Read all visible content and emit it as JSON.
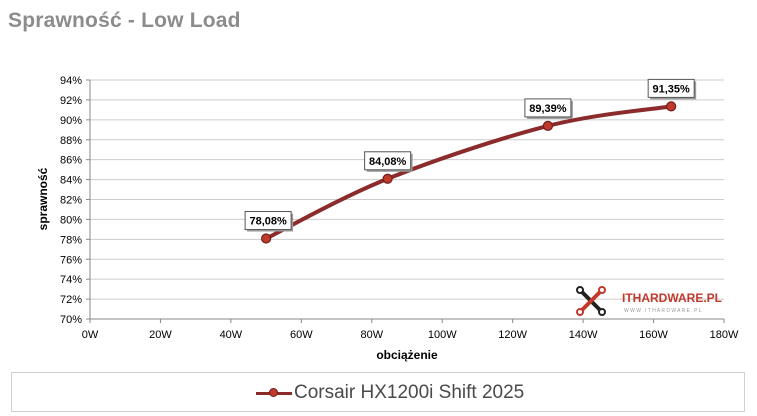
{
  "title": "Sprawność - Low Load",
  "watermark": {
    "brand": "ITHARDWARE.PL",
    "sub": "W W W . I T H A R D W A R E . P L",
    "icon": "x-logo-icon"
  },
  "colors": {
    "series": "#8b2b2b",
    "marker": "#c0392b",
    "grid": "#cccccc",
    "title": "#8c8c8c"
  },
  "chart_data": {
    "type": "line",
    "title": "Sprawność - Low Load",
    "xlabel": "obciążenie",
    "ylabel": "sprawność",
    "xlim": [
      0,
      180
    ],
    "ylim": [
      70,
      94
    ],
    "x_ticks": [
      "0W",
      "20W",
      "40W",
      "60W",
      "80W",
      "100W",
      "120W",
      "140W",
      "160W",
      "180W"
    ],
    "y_ticks": [
      "70%",
      "72%",
      "74%",
      "76%",
      "78%",
      "80%",
      "82%",
      "84%",
      "86%",
      "88%",
      "90%",
      "92%",
      "94%"
    ],
    "grid": "horizontal",
    "legend_position": "bottom",
    "series": [
      {
        "name": "Corsair HX1200i Shift 2025",
        "x": [
          50,
          84.5,
          130,
          165
        ],
        "y": [
          78.08,
          84.08,
          89.39,
          91.35
        ],
        "labels": [
          "78,08%",
          "84,08%",
          "89,39%",
          "91,35%"
        ]
      }
    ]
  }
}
